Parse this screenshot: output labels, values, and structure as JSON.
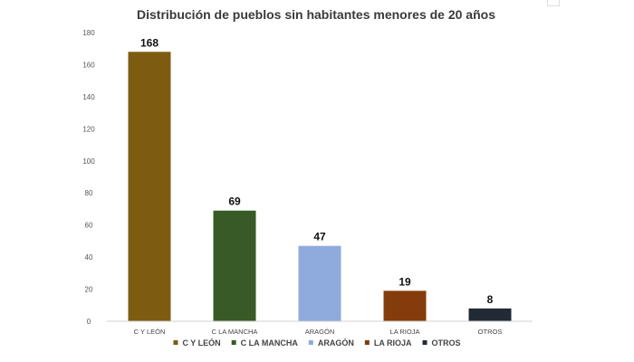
{
  "chart_data": {
    "type": "bar",
    "title": "Distribución de pueblos sin habitantes menores de 20 años",
    "xlabel": "",
    "ylabel": "",
    "categories": [
      "C Y LEÓN",
      "C LA MANCHA",
      "ARAGÓN",
      "LA RIOJA",
      "OTROS"
    ],
    "values": [
      168,
      69,
      47,
      19,
      8
    ],
    "data_labels": [
      "168",
      "69",
      "47",
      "19",
      "8"
    ],
    "colors": [
      "#7d5c12",
      "#385a27",
      "#8faadc",
      "#843c0c",
      "#222a35"
    ],
    "ylim": [
      0,
      180
    ],
    "yticks": [
      0,
      20,
      40,
      60,
      80,
      100,
      120,
      140,
      160,
      180
    ],
    "ytick_labels": [
      "0",
      "20",
      "40",
      "60",
      "80",
      "100",
      "120",
      "140",
      "160",
      "180"
    ],
    "grid": false,
    "legend_position": "bottom",
    "legend": [
      "C Y LEÓN",
      "C LA MANCHA",
      "ARAGÓN",
      "LA RIOJA",
      "OTROS"
    ]
  }
}
